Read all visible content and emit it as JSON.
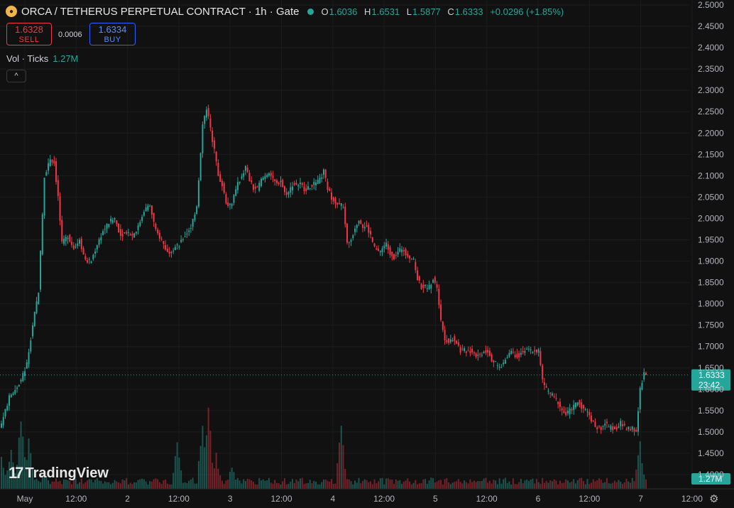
{
  "header": {
    "title": "ORCA / TETHERUS PERPETUAL CONTRACT · 1h · Gate",
    "o_label": "O",
    "o_value": "1.6036",
    "h_label": "H",
    "h_value": "1.6531",
    "l_label": "L",
    "l_value": "1.5877",
    "c_label": "C",
    "c_value": "1.6333",
    "change": "+0.0296 (+1.85%)"
  },
  "trade": {
    "sell_price": "1.6328",
    "sell_label": "SELL",
    "spread": "0.0006",
    "buy_price": "1.6334",
    "buy_label": "BUY"
  },
  "volume": {
    "label": "Vol · Ticks",
    "value": "1.27M"
  },
  "collapse_label": "^",
  "branding": {
    "logo_mark": "17",
    "name": "TradingView"
  },
  "settings_icon": "gear-icon",
  "colors": {
    "up": "#26a69a",
    "down": "#f23645",
    "background": "#111111"
  },
  "chart_data": {
    "type": "candlestick",
    "title": "ORCA / TETHERUS PERPETUAL CONTRACT · 1h · Gate",
    "interval": "1h",
    "ylim": [
      1.4,
      2.5
    ],
    "y_ticks": [
      "2.5000",
      "2.4500",
      "2.4000",
      "2.3500",
      "2.3000",
      "2.2500",
      "2.2000",
      "2.1500",
      "2.1000",
      "2.0500",
      "2.0000",
      "1.9500",
      "1.9000",
      "1.8500",
      "1.8000",
      "1.7500",
      "1.7000",
      "1.6500",
      "1.6000",
      "1.5500",
      "1.5000",
      "1.4500",
      "1.4000"
    ],
    "x_ticks": [
      "May",
      "12:00",
      "2",
      "12:00",
      "3",
      "12:00",
      "4",
      "12:00",
      "5",
      "12:00",
      "6",
      "12:00",
      "7",
      "12:00"
    ],
    "last_price": {
      "value": 1.6333,
      "label": "1.6333",
      "countdown": "23:42"
    },
    "volume_label": "1.27M",
    "close_path": [
      [
        0,
        1.52
      ],
      [
        4,
        1.58
      ],
      [
        7,
        1.6
      ],
      [
        10,
        1.62
      ],
      [
        13,
        1.66
      ],
      [
        16,
        1.75
      ],
      [
        19,
        1.83
      ],
      [
        22,
        2.1
      ],
      [
        25,
        2.14
      ],
      [
        27,
        2.13
      ],
      [
        29,
        2.05
      ],
      [
        31,
        1.94
      ],
      [
        34,
        1.96
      ],
      [
        37,
        1.93
      ],
      [
        40,
        1.95
      ],
      [
        43,
        1.9
      ],
      [
        46,
        1.9
      ],
      [
        49,
        1.94
      ],
      [
        52,
        1.97
      ],
      [
        55,
        1.99
      ],
      [
        58,
        2.0
      ],
      [
        61,
        1.96
      ],
      [
        64,
        1.97
      ],
      [
        67,
        1.96
      ],
      [
        70,
        1.98
      ],
      [
        73,
        2.02
      ],
      [
        76,
        2.03
      ],
      [
        79,
        1.97
      ],
      [
        82,
        1.95
      ],
      [
        85,
        1.92
      ],
      [
        88,
        1.93
      ],
      [
        91,
        1.94
      ],
      [
        94,
        1.96
      ],
      [
        97,
        1.98
      ],
      [
        100,
        2.03
      ],
      [
        103,
        2.22
      ],
      [
        105,
        2.26
      ],
      [
        107,
        2.21
      ],
      [
        109,
        2.16
      ],
      [
        111,
        2.1
      ],
      [
        113,
        2.08
      ],
      [
        115,
        2.04
      ],
      [
        117,
        2.03
      ],
      [
        119,
        2.05
      ],
      [
        121,
        2.08
      ],
      [
        123,
        2.1
      ],
      [
        125,
        2.12
      ],
      [
        127,
        2.09
      ],
      [
        129,
        2.07
      ],
      [
        131,
        2.07
      ],
      [
        133,
        2.09
      ],
      [
        135,
        2.1
      ],
      [
        137,
        2.11
      ],
      [
        139,
        2.09
      ],
      [
        141,
        2.08
      ],
      [
        143,
        2.09
      ],
      [
        145,
        2.06
      ],
      [
        147,
        2.06
      ],
      [
        149,
        2.08
      ],
      [
        151,
        2.08
      ],
      [
        153,
        2.08
      ],
      [
        155,
        2.07
      ],
      [
        157,
        2.07
      ],
      [
        159,
        2.08
      ],
      [
        161,
        2.08
      ],
      [
        163,
        2.09
      ],
      [
        165,
        2.11
      ],
      [
        167,
        2.07
      ],
      [
        169,
        2.05
      ],
      [
        171,
        2.04
      ],
      [
        173,
        2.03
      ],
      [
        175,
        2.03
      ],
      [
        177,
        1.94
      ],
      [
        179,
        1.95
      ],
      [
        181,
        1.98
      ],
      [
        183,
        2.0
      ],
      [
        185,
        1.98
      ],
      [
        187,
        1.98
      ],
      [
        189,
        1.96
      ],
      [
        191,
        1.93
      ],
      [
        193,
        1.92
      ],
      [
        195,
        1.93
      ],
      [
        197,
        1.94
      ],
      [
        199,
        1.92
      ],
      [
        201,
        1.91
      ],
      [
        203,
        1.92
      ],
      [
        205,
        1.93
      ],
      [
        207,
        1.92
      ],
      [
        209,
        1.91
      ],
      [
        211,
        1.9
      ],
      [
        213,
        1.86
      ],
      [
        215,
        1.84
      ],
      [
        217,
        1.84
      ],
      [
        219,
        1.84
      ],
      [
        221,
        1.86
      ],
      [
        223,
        1.84
      ],
      [
        225,
        1.76
      ],
      [
        227,
        1.72
      ],
      [
        229,
        1.71
      ],
      [
        231,
        1.72
      ],
      [
        233,
        1.71
      ],
      [
        235,
        1.69
      ],
      [
        237,
        1.69
      ],
      [
        239,
        1.69
      ],
      [
        241,
        1.69
      ],
      [
        243,
        1.68
      ],
      [
        245,
        1.68
      ],
      [
        247,
        1.69
      ],
      [
        249,
        1.69
      ],
      [
        251,
        1.67
      ],
      [
        253,
        1.66
      ],
      [
        255,
        1.65
      ],
      [
        257,
        1.66
      ],
      [
        259,
        1.68
      ],
      [
        261,
        1.69
      ],
      [
        263,
        1.68
      ],
      [
        265,
        1.68
      ],
      [
        267,
        1.69
      ],
      [
        269,
        1.69
      ],
      [
        271,
        1.69
      ],
      [
        273,
        1.69
      ],
      [
        275,
        1.69
      ],
      [
        277,
        1.62
      ],
      [
        279,
        1.6
      ],
      [
        281,
        1.59
      ],
      [
        283,
        1.58
      ],
      [
        285,
        1.57
      ],
      [
        287,
        1.55
      ],
      [
        289,
        1.54
      ],
      [
        291,
        1.55
      ],
      [
        293,
        1.56
      ],
      [
        295,
        1.57
      ],
      [
        297,
        1.56
      ],
      [
        299,
        1.55
      ],
      [
        301,
        1.54
      ],
      [
        303,
        1.52
      ],
      [
        305,
        1.51
      ],
      [
        307,
        1.51
      ],
      [
        309,
        1.52
      ],
      [
        311,
        1.51
      ],
      [
        313,
        1.51
      ],
      [
        315,
        1.51
      ],
      [
        317,
        1.52
      ],
      [
        319,
        1.51
      ],
      [
        321,
        1.51
      ],
      [
        323,
        1.51
      ],
      [
        325,
        1.5
      ],
      [
        327,
        1.6
      ],
      [
        329,
        1.64
      ],
      [
        330,
        1.6333
      ]
    ],
    "volume_peaks": [
      [
        0,
        0.45
      ],
      [
        5,
        0.55
      ],
      [
        10,
        0.95
      ],
      [
        14,
        0.6
      ],
      [
        22,
        0.25
      ],
      [
        40,
        0.1
      ],
      [
        90,
        0.6
      ],
      [
        103,
        0.9
      ],
      [
        106,
        0.98
      ],
      [
        110,
        0.45
      ],
      [
        118,
        0.3
      ],
      [
        174,
        0.8
      ],
      [
        220,
        0.15
      ],
      [
        327,
        0.6
      ]
    ]
  }
}
